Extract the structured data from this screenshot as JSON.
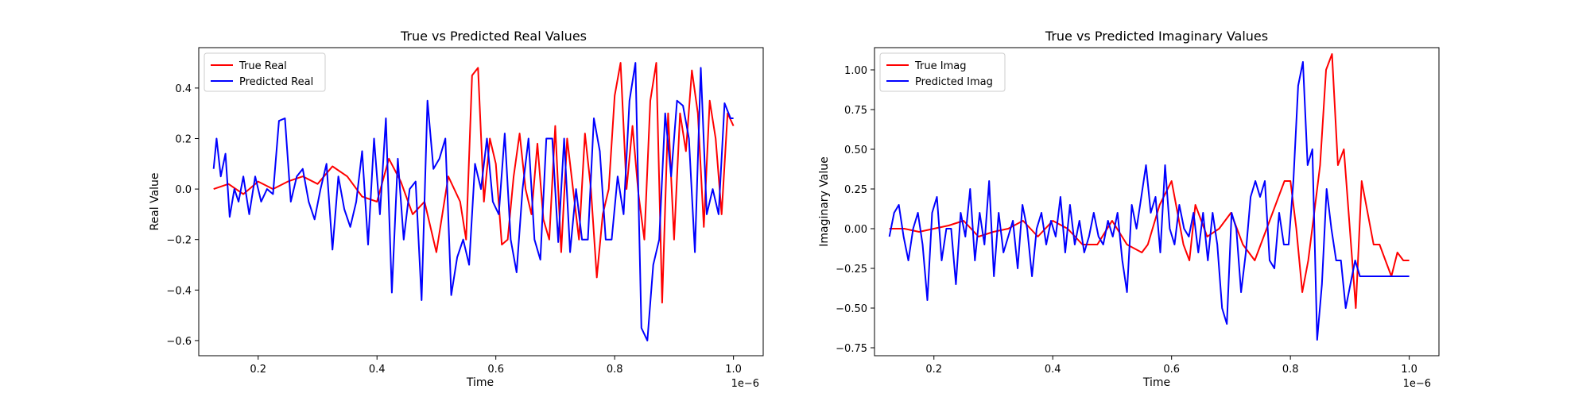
{
  "chart_data": [
    {
      "type": "line",
      "title": "True vs Predicted Real Values",
      "xlabel": "Time",
      "ylabel": "Real Value",
      "x_offset_label": "1e−6",
      "xlim": [
        0.1,
        1.05
      ],
      "ylim": [
        -0.66,
        0.56
      ],
      "xticks": [
        0.2,
        0.4,
        0.6,
        0.8,
        1.0
      ],
      "xtick_labels": [
        "0.2",
        "0.4",
        "0.6",
        "0.8",
        "1.0"
      ],
      "yticks": [
        -0.6,
        -0.4,
        -0.2,
        0.0,
        0.2,
        0.4
      ],
      "ytick_labels": [
        "−0.6",
        "−0.4",
        "−0.2",
        "0.0",
        "0.2",
        "0.4"
      ],
      "legend_position": "upper-left",
      "grid": false,
      "series": [
        {
          "name": "True Real",
          "color": "#ff0000",
          "x": [
            0.125,
            0.15,
            0.175,
            0.2,
            0.225,
            0.25,
            0.275,
            0.3,
            0.325,
            0.35,
            0.375,
            0.4,
            0.42,
            0.44,
            0.46,
            0.48,
            0.5,
            0.52,
            0.54,
            0.55,
            0.56,
            0.57,
            0.58,
            0.59,
            0.6,
            0.61,
            0.62,
            0.63,
            0.64,
            0.65,
            0.66,
            0.67,
            0.68,
            0.69,
            0.7,
            0.71,
            0.72,
            0.73,
            0.74,
            0.75,
            0.76,
            0.77,
            0.78,
            0.79,
            0.8,
            0.81,
            0.82,
            0.83,
            0.84,
            0.85,
            0.86,
            0.87,
            0.88,
            0.89,
            0.9,
            0.91,
            0.92,
            0.93,
            0.94,
            0.95,
            0.96,
            0.97,
            0.98,
            0.99,
            1.0
          ],
          "y": [
            0.0,
            0.02,
            -0.02,
            0.03,
            0.0,
            0.03,
            0.05,
            0.02,
            0.09,
            0.05,
            -0.03,
            -0.05,
            0.12,
            0.03,
            -0.1,
            -0.05,
            -0.25,
            0.05,
            -0.05,
            -0.2,
            0.45,
            0.48,
            -0.05,
            0.2,
            0.1,
            -0.22,
            -0.2,
            0.05,
            0.22,
            0.0,
            -0.1,
            0.18,
            -0.12,
            -0.2,
            0.25,
            -0.25,
            0.2,
            0.0,
            -0.2,
            0.22,
            0.0,
            -0.35,
            -0.1,
            0.0,
            0.37,
            0.5,
            0.0,
            0.25,
            -0.02,
            -0.2,
            0.35,
            0.5,
            -0.45,
            0.3,
            -0.2,
            0.3,
            0.15,
            0.47,
            0.3,
            -0.15,
            0.35,
            0.2,
            -0.1,
            0.3,
            0.25
          ]
        },
        {
          "name": "Predicted Real",
          "color": "#0000ff",
          "x": [
            0.125,
            0.13,
            0.137,
            0.145,
            0.152,
            0.16,
            0.167,
            0.175,
            0.185,
            0.195,
            0.205,
            0.215,
            0.225,
            0.235,
            0.245,
            0.255,
            0.265,
            0.275,
            0.285,
            0.295,
            0.305,
            0.315,
            0.325,
            0.335,
            0.345,
            0.355,
            0.365,
            0.375,
            0.385,
            0.395,
            0.405,
            0.415,
            0.425,
            0.435,
            0.445,
            0.455,
            0.465,
            0.475,
            0.485,
            0.495,
            0.505,
            0.515,
            0.525,
            0.535,
            0.545,
            0.555,
            0.565,
            0.575,
            0.585,
            0.595,
            0.605,
            0.615,
            0.625,
            0.635,
            0.645,
            0.655,
            0.665,
            0.675,
            0.685,
            0.695,
            0.705,
            0.715,
            0.725,
            0.735,
            0.745,
            0.755,
            0.765,
            0.775,
            0.785,
            0.795,
            0.805,
            0.815,
            0.825,
            0.835,
            0.845,
            0.855,
            0.865,
            0.875,
            0.885,
            0.895,
            0.905,
            0.915,
            0.925,
            0.935,
            0.945,
            0.955,
            0.965,
            0.975,
            0.985,
            0.995,
            1.0
          ],
          "y": [
            0.08,
            0.2,
            0.05,
            0.14,
            -0.11,
            0.0,
            -0.05,
            0.05,
            -0.1,
            0.05,
            -0.05,
            0.0,
            -0.02,
            0.27,
            0.28,
            -0.05,
            0.05,
            0.08,
            -0.05,
            -0.12,
            0.0,
            0.1,
            -0.24,
            0.05,
            -0.08,
            -0.15,
            -0.05,
            0.15,
            -0.22,
            0.2,
            -0.1,
            0.28,
            -0.41,
            0.12,
            -0.2,
            0.0,
            0.03,
            -0.44,
            0.35,
            0.08,
            0.12,
            0.2,
            -0.42,
            -0.27,
            -0.2,
            -0.3,
            0.1,
            0.0,
            0.2,
            -0.05,
            -0.1,
            0.22,
            -0.2,
            -0.33,
            0.0,
            0.2,
            -0.2,
            -0.28,
            0.2,
            0.2,
            -0.21,
            0.2,
            -0.25,
            0.0,
            -0.2,
            -0.2,
            0.28,
            0.15,
            -0.2,
            -0.2,
            0.05,
            -0.1,
            0.35,
            0.5,
            -0.55,
            -0.6,
            -0.3,
            -0.2,
            0.3,
            0.05,
            0.35,
            0.33,
            0.2,
            -0.25,
            0.48,
            -0.1,
            0.0,
            -0.1,
            0.34,
            0.28,
            0.28
          ]
        }
      ]
    },
    {
      "type": "line",
      "title": "True vs Predicted Imaginary Values",
      "xlabel": "Time",
      "ylabel": "Imaginary Value",
      "x_offset_label": "1e−6",
      "xlim": [
        0.1,
        1.05
      ],
      "ylim": [
        -0.8,
        1.14
      ],
      "xticks": [
        0.2,
        0.4,
        0.6,
        0.8,
        1.0
      ],
      "xtick_labels": [
        "0.2",
        "0.4",
        "0.6",
        "0.8",
        "1.0"
      ],
      "yticks": [
        -0.75,
        -0.5,
        -0.25,
        0.0,
        0.25,
        0.5,
        0.75,
        1.0
      ],
      "ytick_labels": [
        "−0.75",
        "−0.50",
        "−0.25",
        "0.00",
        "0.25",
        "0.50",
        "0.75",
        "1.00"
      ],
      "legend_position": "upper-left",
      "grid": false,
      "series": [
        {
          "name": "True Imag",
          "color": "#ff0000",
          "x": [
            0.125,
            0.15,
            0.175,
            0.2,
            0.225,
            0.25,
            0.275,
            0.3,
            0.325,
            0.35,
            0.375,
            0.4,
            0.425,
            0.45,
            0.475,
            0.5,
            0.525,
            0.55,
            0.56,
            0.58,
            0.6,
            0.62,
            0.63,
            0.64,
            0.66,
            0.68,
            0.7,
            0.72,
            0.74,
            0.76,
            0.78,
            0.79,
            0.8,
            0.81,
            0.82,
            0.83,
            0.84,
            0.85,
            0.86,
            0.87,
            0.88,
            0.89,
            0.9,
            0.91,
            0.92,
            0.93,
            0.94,
            0.95,
            0.96,
            0.97,
            0.98,
            0.99,
            1.0
          ],
          "y": [
            0.0,
            0.0,
            -0.02,
            0.0,
            0.02,
            0.05,
            -0.05,
            -0.02,
            0.0,
            0.05,
            -0.05,
            0.05,
            0.0,
            -0.1,
            -0.1,
            0.05,
            -0.1,
            -0.15,
            -0.1,
            0.15,
            0.3,
            -0.1,
            -0.2,
            0.15,
            -0.05,
            0.0,
            0.1,
            -0.1,
            -0.2,
            0.0,
            0.2,
            0.3,
            0.3,
            0.0,
            -0.4,
            -0.2,
            0.1,
            0.4,
            1.0,
            1.1,
            0.4,
            0.5,
            0.0,
            -0.5,
            0.3,
            0.1,
            -0.1,
            -0.1,
            -0.2,
            -0.3,
            -0.15,
            -0.2,
            -0.2
          ]
        },
        {
          "name": "Predicted Imag",
          "color": "#0000ff",
          "x": [
            0.125,
            0.133,
            0.141,
            0.149,
            0.157,
            0.165,
            0.173,
            0.181,
            0.189,
            0.197,
            0.205,
            0.213,
            0.221,
            0.229,
            0.237,
            0.245,
            0.253,
            0.261,
            0.269,
            0.277,
            0.285,
            0.293,
            0.301,
            0.309,
            0.317,
            0.325,
            0.333,
            0.341,
            0.349,
            0.357,
            0.365,
            0.373,
            0.381,
            0.389,
            0.397,
            0.405,
            0.413,
            0.421,
            0.429,
            0.437,
            0.445,
            0.453,
            0.461,
            0.469,
            0.477,
            0.485,
            0.493,
            0.501,
            0.509,
            0.517,
            0.525,
            0.533,
            0.541,
            0.549,
            0.557,
            0.565,
            0.573,
            0.581,
            0.589,
            0.597,
            0.605,
            0.613,
            0.621,
            0.629,
            0.637,
            0.645,
            0.653,
            0.661,
            0.669,
            0.677,
            0.685,
            0.693,
            0.701,
            0.709,
            0.717,
            0.725,
            0.733,
            0.741,
            0.749,
            0.757,
            0.765,
            0.773,
            0.781,
            0.789,
            0.797,
            0.805,
            0.813,
            0.821,
            0.829,
            0.837,
            0.845,
            0.853,
            0.861,
            0.869,
            0.877,
            0.885,
            0.893,
            0.901,
            0.909,
            0.917,
            0.925,
            0.933,
            0.941,
            0.949,
            0.957,
            0.965,
            0.973,
            0.981,
            0.989,
            1.0
          ],
          "y": [
            -0.05,
            0.1,
            0.15,
            -0.05,
            -0.2,
            0.0,
            0.1,
            -0.1,
            -0.45,
            0.1,
            0.2,
            -0.2,
            0.0,
            0.0,
            -0.35,
            0.1,
            -0.05,
            0.25,
            -0.2,
            0.1,
            -0.1,
            0.3,
            -0.3,
            0.1,
            -0.15,
            -0.05,
            0.05,
            -0.25,
            0.15,
            0.0,
            -0.3,
            0.0,
            0.1,
            -0.1,
            0.05,
            -0.05,
            0.2,
            -0.15,
            0.15,
            -0.1,
            0.05,
            -0.15,
            -0.05,
            0.1,
            -0.05,
            -0.1,
            0.05,
            -0.05,
            0.1,
            -0.2,
            -0.4,
            0.15,
            0.0,
            0.2,
            0.4,
            0.1,
            0.2,
            -0.15,
            0.4,
            0.0,
            -0.1,
            0.15,
            0.0,
            -0.05,
            0.1,
            -0.15,
            0.1,
            -0.2,
            0.1,
            -0.1,
            -0.5,
            -0.6,
            0.1,
            0.0,
            -0.4,
            -0.15,
            0.2,
            0.3,
            0.2,
            0.3,
            -0.2,
            -0.25,
            0.1,
            -0.1,
            -0.1,
            0.3,
            0.9,
            1.05,
            0.4,
            0.5,
            -0.7,
            -0.35,
            0.25,
            0.0,
            -0.2,
            -0.2,
            -0.5,
            -0.35,
            -0.2,
            -0.3,
            -0.3,
            -0.3,
            -0.3,
            -0.3,
            -0.3,
            -0.3,
            -0.3,
            -0.3,
            -0.3,
            -0.3
          ]
        }
      ]
    }
  ]
}
